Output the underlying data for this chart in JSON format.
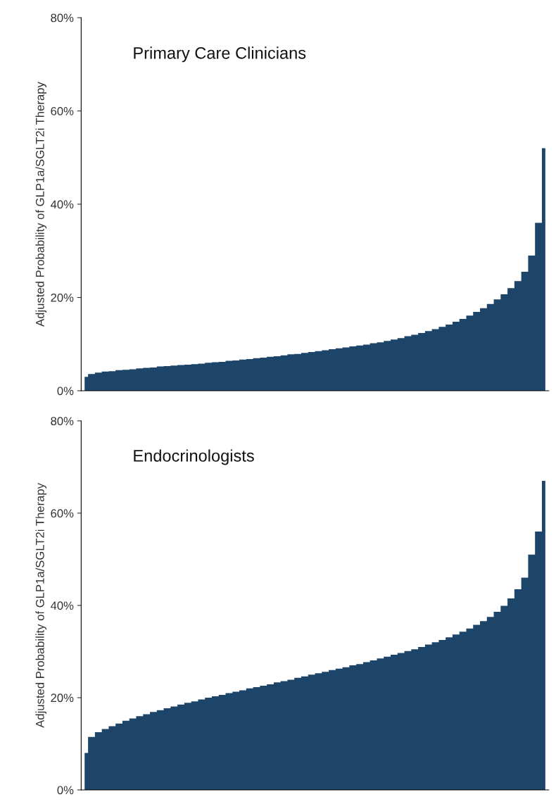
{
  "chart_data": [
    {
      "type": "area",
      "title": "Primary Care Clinicians",
      "ylabel": "Adjusted Probability of GLP1a/SGLT2i Therapy",
      "color": "#1d4569",
      "tick_labels": "y",
      "grid": false,
      "legend": false,
      "categories": [
        null,
        null,
        null,
        null,
        null,
        null,
        null,
        null,
        null,
        null,
        null,
        null,
        null,
        null,
        null,
        null,
        null,
        null,
        null,
        null,
        null,
        null,
        null,
        null,
        null,
        null,
        null,
        null,
        null,
        null,
        null,
        null,
        null,
        null,
        null,
        null,
        null,
        null,
        null,
        null,
        null,
        null,
        null,
        null,
        null,
        null,
        null,
        null,
        null,
        null,
        null,
        null,
        null,
        null,
        null,
        null,
        null,
        null,
        null,
        null,
        null,
        null,
        null,
        null,
        null,
        null,
        null,
        null
      ],
      "values": [
        3.0,
        3.6,
        3.9,
        4.1,
        4.2,
        4.4,
        4.5,
        4.6,
        4.8,
        4.9,
        5.0,
        5.2,
        5.3,
        5.4,
        5.5,
        5.6,
        5.7,
        5.8,
        6.0,
        6.1,
        6.2,
        6.4,
        6.5,
        6.7,
        6.8,
        7.0,
        7.1,
        7.3,
        7.4,
        7.6,
        7.8,
        7.9,
        8.1,
        8.3,
        8.5,
        8.7,
        8.9,
        9.1,
        9.3,
        9.5,
        9.7,
        9.9,
        10.2,
        10.4,
        10.7,
        11.0,
        11.3,
        11.7,
        12.0,
        12.4,
        12.8,
        13.2,
        13.7,
        14.2,
        14.8,
        15.4,
        16.1,
        16.9,
        17.7,
        18.6,
        19.6,
        20.7,
        22.0,
        23.5,
        25.5,
        29,
        36,
        52
      ],
      "ylim": [
        0,
        80
      ],
      "yticks": [
        {
          "value": 0,
          "label": "0%"
        },
        {
          "value": 20,
          "label": "20%"
        },
        {
          "value": 40,
          "label": "40%"
        },
        {
          "value": 60,
          "label": "60%"
        },
        {
          "value": 80,
          "label": "80%"
        }
      ]
    },
    {
      "type": "area",
      "title": "Endocrinologists",
      "ylabel": "Adjusted Probability of GLP1a/SGLT2i Therapy",
      "color": "#1d4569",
      "tick_labels": "y",
      "grid": false,
      "legend": false,
      "categories": [
        null,
        null,
        null,
        null,
        null,
        null,
        null,
        null,
        null,
        null,
        null,
        null,
        null,
        null,
        null,
        null,
        null,
        null,
        null,
        null,
        null,
        null,
        null,
        null,
        null,
        null,
        null,
        null,
        null,
        null,
        null,
        null,
        null,
        null,
        null,
        null,
        null,
        null,
        null,
        null,
        null,
        null,
        null,
        null,
        null,
        null,
        null,
        null,
        null,
        null,
        null,
        null,
        null,
        null,
        null,
        null,
        null,
        null,
        null,
        null,
        null,
        null,
        null,
        null,
        null,
        null,
        null,
        null
      ],
      "values": [
        8.0,
        11.5,
        12.5,
        13.2,
        13.8,
        14.4,
        15.0,
        15.5,
        16.0,
        16.4,
        16.9,
        17.3,
        17.7,
        18.1,
        18.5,
        18.9,
        19.2,
        19.6,
        20.0,
        20.3,
        20.6,
        21.0,
        21.3,
        21.6,
        22.0,
        22.3,
        22.6,
        22.9,
        23.3,
        23.6,
        23.9,
        24.3,
        24.6,
        25.0,
        25.3,
        25.6,
        26.0,
        26.3,
        26.6,
        27.0,
        27.3,
        27.7,
        28.1,
        28.5,
        28.9,
        29.3,
        29.7,
        30.1,
        30.5,
        31.0,
        31.5,
        32.0,
        32.5,
        33.1,
        33.7,
        34.3,
        35.0,
        35.8,
        36.6,
        37.5,
        38.6,
        39.9,
        41.5,
        43.5,
        46,
        51,
        56,
        67
      ],
      "ylim": [
        0,
        80
      ],
      "yticks": [
        {
          "value": 0,
          "label": "0%"
        },
        {
          "value": 20,
          "label": "20%"
        },
        {
          "value": 40,
          "label": "40%"
        },
        {
          "value": 60,
          "label": "60%"
        },
        {
          "value": 80,
          "label": "80%"
        }
      ]
    }
  ]
}
